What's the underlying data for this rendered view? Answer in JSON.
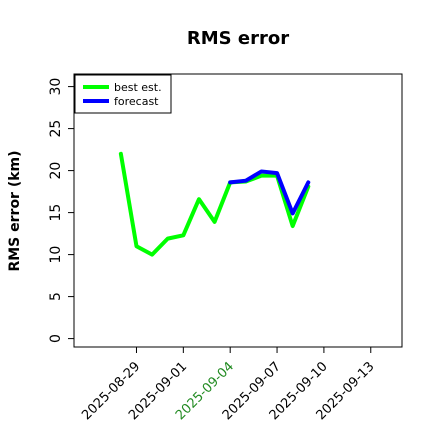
{
  "chart_data": {
    "type": "line",
    "title": "RMS error",
    "xlabel": "",
    "ylabel": "RMS error (km)",
    "ylim": [
      -1,
      31.5
    ],
    "yticks": [
      0,
      5,
      10,
      15,
      20,
      25,
      30
    ],
    "xlim": [
      "2025-08-25",
      "2025-09-15"
    ],
    "xticks": [
      "2025-08-29",
      "2025-09-01",
      "2025-09-04",
      "2025-09-07",
      "2025-09-10",
      "2025-09-13"
    ],
    "highlight_tick": "2025-09-04",
    "highlight_color": "#228B22",
    "grid": false,
    "legend": {
      "position": "top-left"
    },
    "series": [
      {
        "name": "best est.",
        "color": "#00ff00",
        "points": [
          [
            "2025-08-28",
            22.0
          ],
          [
            "2025-08-29",
            11.0
          ],
          [
            "2025-08-30",
            10.0
          ],
          [
            "2025-08-31",
            11.9
          ],
          [
            "2025-09-01",
            12.3
          ],
          [
            "2025-09-02",
            16.6
          ],
          [
            "2025-09-03",
            13.9
          ],
          [
            "2025-09-04",
            18.6
          ],
          [
            "2025-09-05",
            18.7
          ],
          [
            "2025-09-06",
            19.4
          ],
          [
            "2025-09-07",
            19.4
          ],
          [
            "2025-09-08",
            13.4
          ],
          [
            "2025-09-09",
            18.1
          ]
        ]
      },
      {
        "name": "forecast",
        "color": "#0000ff",
        "points": [
          [
            "2025-09-04",
            18.6
          ],
          [
            "2025-09-05",
            18.8
          ],
          [
            "2025-09-06",
            19.9
          ],
          [
            "2025-09-07",
            19.7
          ],
          [
            "2025-09-08",
            14.9
          ],
          [
            "2025-09-09",
            18.6
          ]
        ]
      }
    ]
  }
}
